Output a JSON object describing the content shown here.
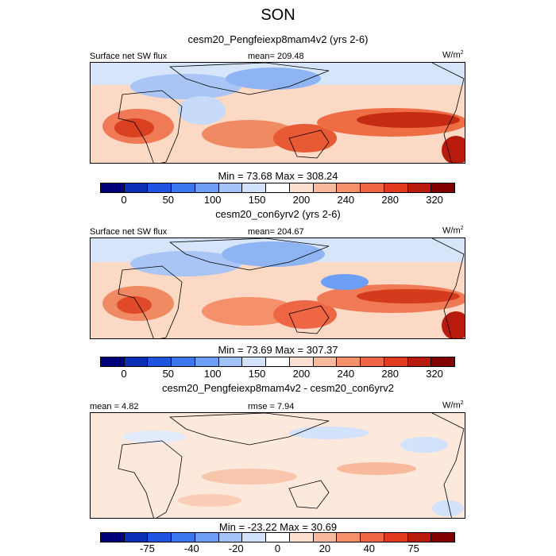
{
  "title": "SON",
  "panels": [
    {
      "subtitle": "cesm20_Pengfeiexp8mam4v2 (yrs 2-6)",
      "left_label": "Surface net SW flux",
      "center_label": "mean= 209.48",
      "units_base": "W/m",
      "units_exp": "2",
      "minmax": "Min =  73.68 Max = 308.24",
      "colorbar_ticks": [
        "0",
        "50",
        "100",
        "150",
        "200",
        "240",
        "280",
        "320"
      ]
    },
    {
      "subtitle": "cesm20_con6yrv2 (yrs 2-6)",
      "left_label": "Surface net SW flux",
      "center_label": "mean= 204.67",
      "units_base": "W/m",
      "units_exp": "2",
      "minmax": "Min =  73.69 Max = 307.37",
      "colorbar_ticks": [
        "0",
        "50",
        "100",
        "150",
        "200",
        "240",
        "280",
        "320"
      ]
    },
    {
      "subtitle": "cesm20_Pengfeiexp8mam4v2 - cesm20_con6yrv2",
      "left_label": "mean =   4.82",
      "center_label": "rmse =   7.94",
      "units_base": "W/m",
      "units_exp": "2",
      "minmax": "Min = -23.22 Max =  30.69",
      "colorbar_ticks": [
        "-75",
        "-40",
        "-20",
        "0",
        "20",
        "40",
        "75"
      ]
    }
  ],
  "colors": {
    "palette": [
      "#00007a",
      "#0a2eb4",
      "#1f54e0",
      "#3b78f0",
      "#6d9ef5",
      "#a3c2f8",
      "#d2e2fb",
      "#ffffff",
      "#fde0d0",
      "#f8b99c",
      "#f4916b",
      "#ef6644",
      "#e03a1f",
      "#b81a0c",
      "#800000"
    ],
    "map_background": "#fde2d0",
    "land_outline": "#000000"
  }
}
